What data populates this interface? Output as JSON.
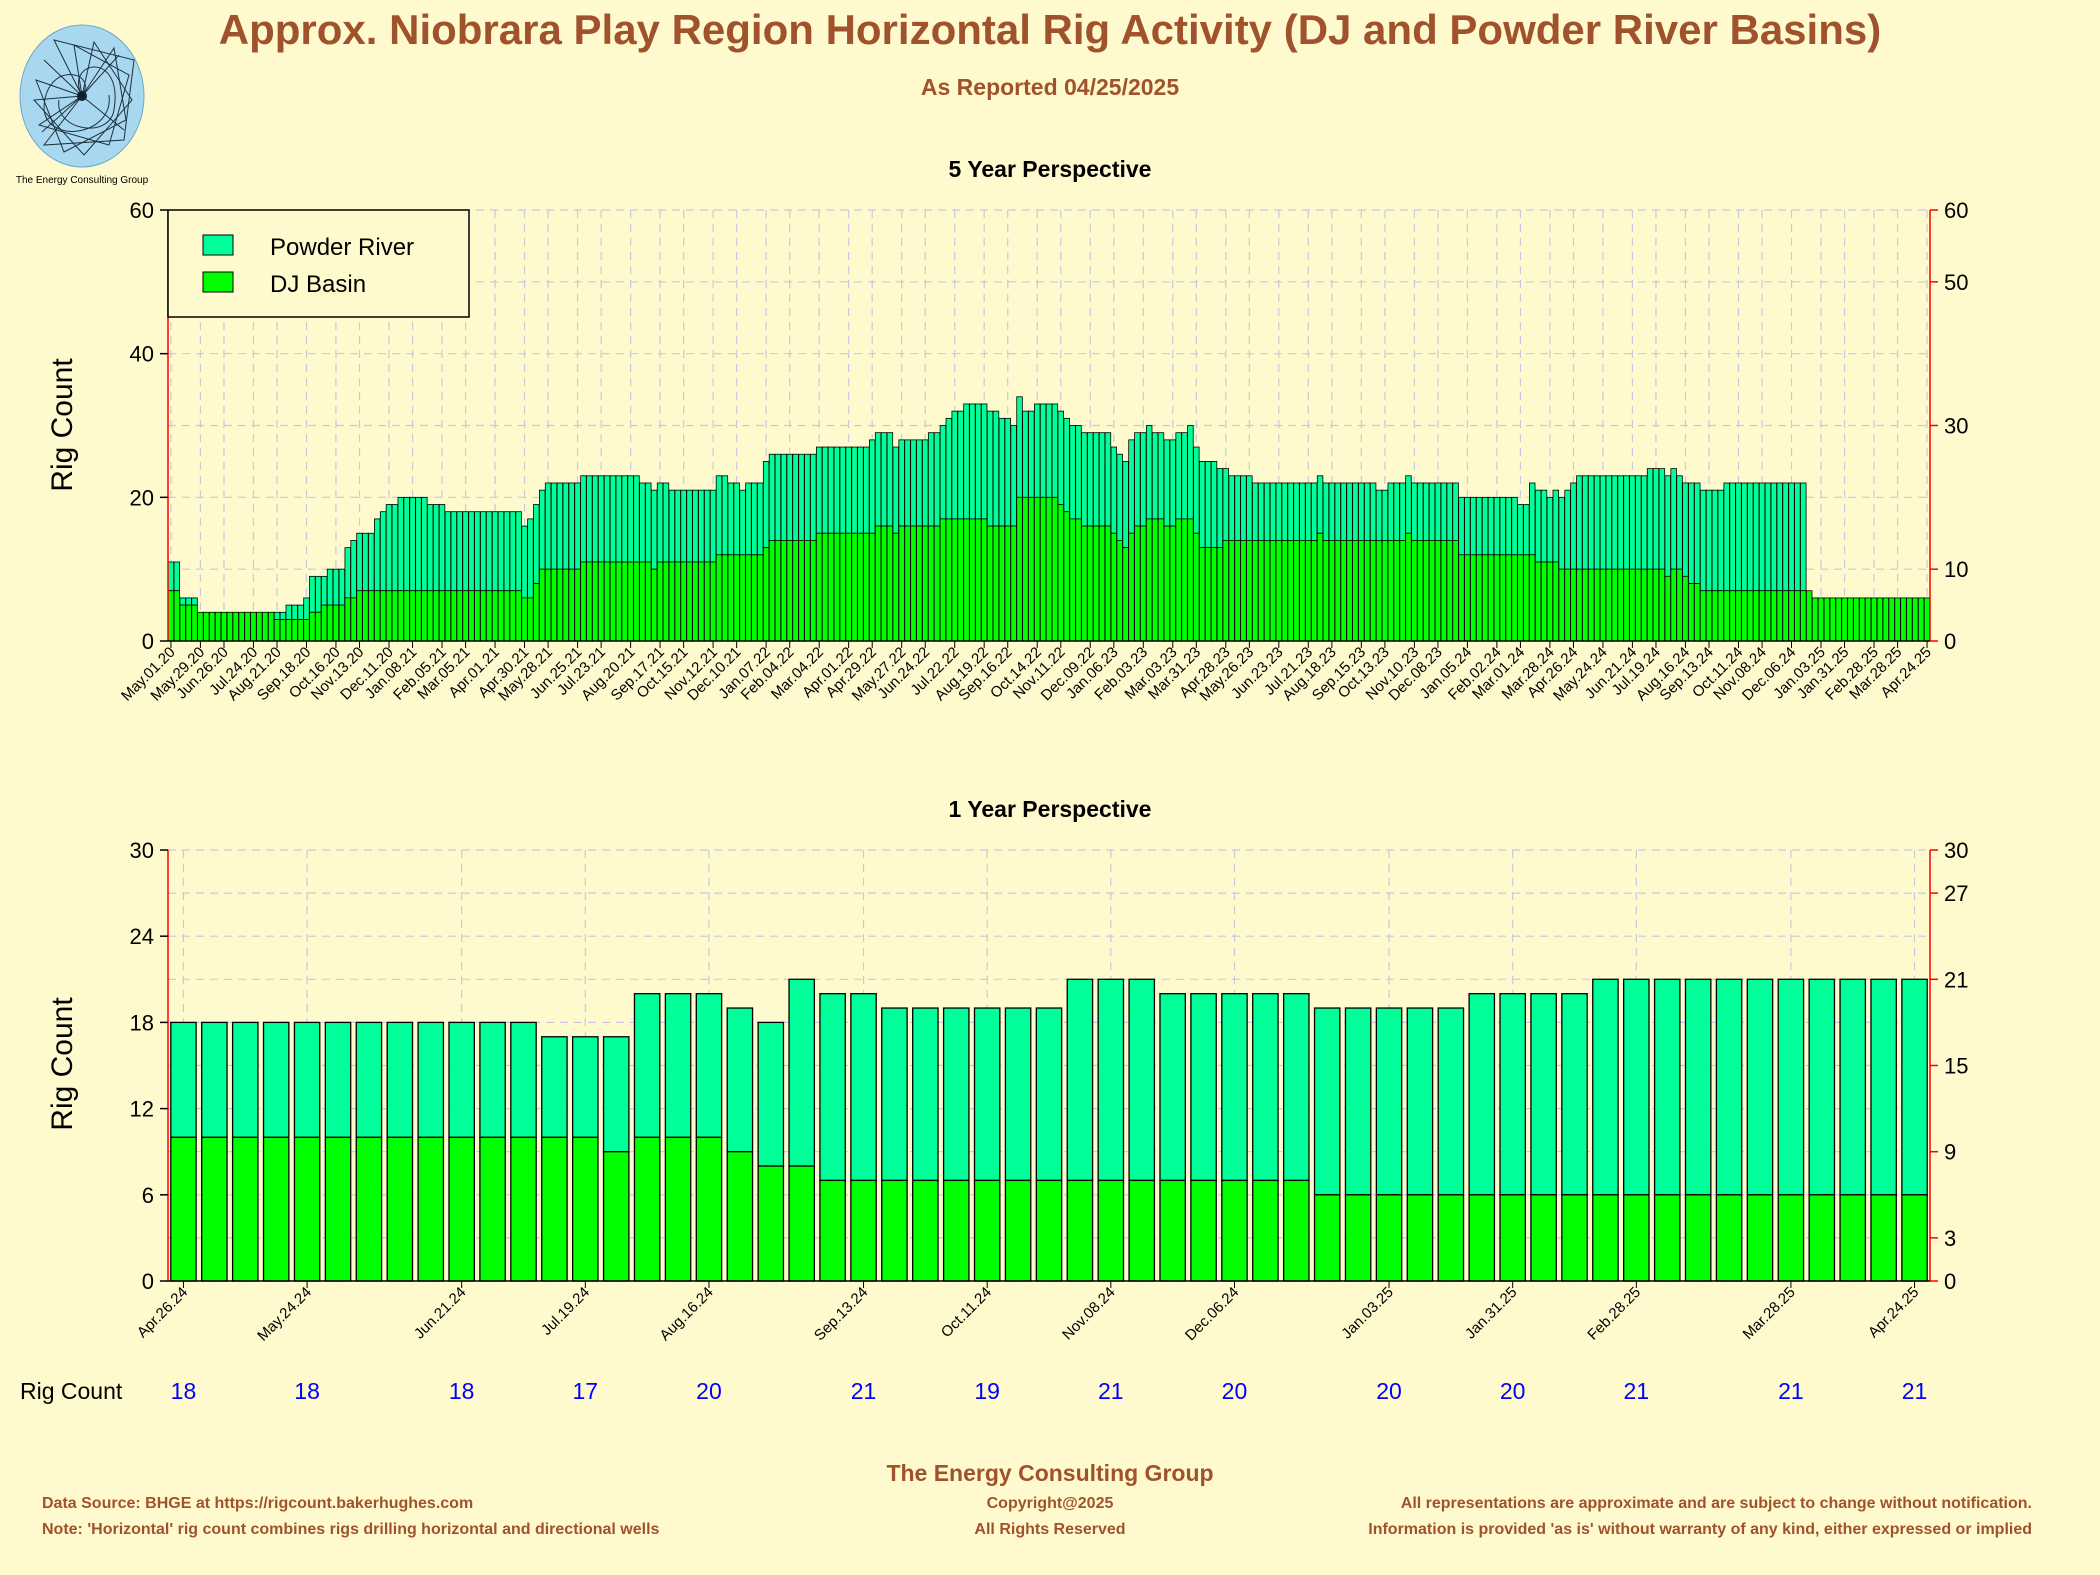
{
  "title": "Approx. Niobrara Play Region Horizontal Rig Activity (DJ and Powder River Basins)",
  "subtitle": "As Reported 04/25/2025",
  "logo": {
    "text": "The Energy Consulting Group",
    "icon": "spiral-logo-icon"
  },
  "colors": {
    "powder_river": "#00ff99",
    "dj_basin": "#00ff00",
    "title": "#a0522d",
    "right_axis": "#ff0000",
    "rig_count_values": "#0000ff",
    "background": "#fffacd"
  },
  "chart_data": [
    {
      "type": "bar",
      "stacked": true,
      "title": "5 Year Perspective",
      "ylabel": "Rig Count",
      "ylim": [
        0,
        60
      ],
      "yticks_left": [
        0,
        20,
        40,
        60
      ],
      "yticks_right": [
        0,
        10,
        30,
        50,
        60
      ],
      "grid": true,
      "legend_position": "top-left",
      "x_tick_labels": [
        "May.01.20",
        "May.29.20",
        "Jun.26.20",
        "Jul.24.20",
        "Aug.21.20",
        "Sep.18.20",
        "Oct.16.20",
        "Nov.13.20",
        "Dec.11.20",
        "Jan.08.21",
        "Feb.05.21",
        "Mar.05.21",
        "Apr.01.21",
        "Apr.30.21",
        "May.28.21",
        "Jun.25.21",
        "Jul.23.21",
        "Aug.20.21",
        "Sep.17.21",
        "Oct.15.21",
        "Nov.12.21",
        "Dec.10.21",
        "Jan.07.22",
        "Feb.04.22",
        "Mar.04.22",
        "Apr.01.22",
        "Apr.29.22",
        "May.27.22",
        "Jun.24.22",
        "Jul.22.22",
        "Aug.19.22",
        "Sep.16.22",
        "Oct.14.22",
        "Nov.11.22",
        "Dec.09.22",
        "Jan.06.23",
        "Feb.03.23",
        "Mar.03.23",
        "Mar.31.23",
        "Apr.28.23",
        "May.26.23",
        "Jun.23.23",
        "Jul.21.23",
        "Aug.18.23",
        "Sep.15.23",
        "Oct.13.23",
        "Nov.10.23",
        "Dec.08.23",
        "Jan.05.24",
        "Feb.02.24",
        "Mar.01.24",
        "Mar.28.24",
        "Apr.26.24",
        "May.24.24",
        "Jun.21.24",
        "Jul.19.24",
        "Aug.16.24",
        "Sep.13.24",
        "Oct.11.24",
        "Nov.08.24",
        "Dec.06.24",
        "Jan.03.25",
        "Jan.31.25",
        "Feb.28.25",
        "Mar.28.25",
        "Apr.24.25"
      ],
      "series": [
        {
          "name": "Powder River",
          "values": [
            4,
            4,
            1,
            1,
            1,
            0,
            0,
            0,
            0,
            0,
            0,
            0,
            0,
            0,
            0,
            0,
            0,
            0,
            1,
            1,
            2,
            2,
            2,
            3,
            5,
            5,
            4,
            5,
            5,
            5,
            7,
            8,
            8,
            8,
            8,
            10,
            11,
            12,
            12,
            13,
            13,
            13,
            13,
            13,
            12,
            12,
            12,
            11,
            11,
            11,
            11,
            11,
            11,
            11,
            11,
            11,
            11,
            11,
            11,
            11,
            10,
            11,
            11,
            11,
            12,
            12,
            12,
            12,
            12,
            12,
            12,
            12,
            12,
            12,
            12,
            12,
            12,
            12,
            12,
            12,
            11,
            11,
            11,
            11,
            11,
            10,
            10,
            10,
            10,
            10,
            10,
            10,
            10,
            11,
            11,
            10,
            10,
            9,
            10,
            10,
            10,
            12,
            12,
            12,
            12,
            12,
            12,
            12,
            12,
            12,
            12,
            12,
            12,
            12,
            12,
            12,
            12,
            12,
            12,
            13,
            13,
            13,
            13,
            12,
            12,
            12,
            12,
            12,
            12,
            13,
            13,
            13,
            14,
            15,
            15,
            16,
            16,
            16,
            16,
            16,
            16,
            15,
            15,
            14,
            14,
            12,
            12,
            13,
            13,
            13,
            13,
            13,
            13,
            13,
            13,
            13,
            13,
            13,
            13,
            13,
            12,
            12,
            12,
            13,
            13,
            13,
            13,
            12,
            12,
            12,
            12,
            12,
            12,
            13,
            12,
            12,
            12,
            12,
            11,
            10,
            9,
            9,
            9,
            9,
            8,
            8,
            8,
            8,
            8,
            8,
            8,
            8,
            8,
            8,
            8,
            8,
            8,
            8,
            8,
            8,
            8,
            8,
            8,
            8,
            8,
            7,
            7,
            8,
            8,
            8,
            8,
            8,
            8,
            8,
            8,
            8,
            8,
            8,
            8,
            8,
            8,
            8,
            8,
            8,
            8,
            8,
            8,
            8,
            8,
            7,
            7,
            10,
            10,
            10,
            9,
            10,
            10,
            11,
            12,
            13,
            13,
            13,
            13,
            13,
            13,
            13,
            13,
            13,
            13,
            13,
            13,
            14,
            14,
            14,
            14,
            14,
            13,
            13,
            14,
            14,
            14,
            14,
            14,
            14,
            15,
            15,
            15,
            15,
            15,
            15,
            15,
            15,
            15,
            15,
            15,
            15,
            15,
            15
          ]
        },
        {
          "name": "DJ Basin",
          "values": [
            7,
            7,
            5,
            5,
            5,
            4,
            4,
            4,
            4,
            4,
            4,
            4,
            4,
            4,
            4,
            4,
            4,
            4,
            3,
            3,
            3,
            3,
            3,
            3,
            4,
            4,
            5,
            5,
            5,
            5,
            6,
            6,
            7,
            7,
            7,
            7,
            7,
            7,
            7,
            7,
            7,
            7,
            7,
            7,
            7,
            7,
            7,
            7,
            7,
            7,
            7,
            7,
            7,
            7,
            7,
            7,
            7,
            7,
            7,
            7,
            6,
            6,
            8,
            10,
            10,
            10,
            10,
            10,
            10,
            10,
            11,
            11,
            11,
            11,
            11,
            11,
            11,
            11,
            11,
            11,
            11,
            11,
            10,
            11,
            11,
            11,
            11,
            11,
            11,
            11,
            11,
            11,
            11,
            12,
            12,
            12,
            12,
            12,
            12,
            12,
            12,
            13,
            14,
            14,
            14,
            14,
            14,
            14,
            14,
            14,
            15,
            15,
            15,
            15,
            15,
            15,
            15,
            15,
            15,
            15,
            16,
            16,
            16,
            15,
            16,
            16,
            16,
            16,
            16,
            16,
            16,
            17,
            17,
            17,
            17,
            17,
            17,
            17,
            17,
            16,
            16,
            16,
            16,
            16,
            20,
            20,
            20,
            20,
            20,
            20,
            20,
            19,
            18,
            17,
            17,
            16,
            16,
            16,
            16,
            16,
            15,
            14,
            13,
            15,
            16,
            16,
            17,
            17,
            17,
            16,
            16,
            17,
            17,
            17,
            15,
            13,
            13,
            13,
            13,
            14,
            14,
            14,
            14,
            14,
            14,
            14,
            14,
            14,
            14,
            14,
            14,
            14,
            14,
            14,
            14,
            15,
            14,
            14,
            14,
            14,
            14,
            14,
            14,
            14,
            14,
            14,
            14,
            14,
            14,
            14,
            15,
            14,
            14,
            14,
            14,
            14,
            14,
            14,
            14,
            12,
            12,
            12,
            12,
            12,
            12,
            12,
            12,
            12,
            12,
            12,
            12,
            12,
            11,
            11,
            11,
            11,
            10,
            10,
            10,
            10,
            10,
            10,
            10,
            10,
            10,
            10,
            10,
            10,
            10,
            10,
            10,
            10,
            10,
            10,
            9,
            10,
            10,
            9,
            8,
            8,
            7,
            7,
            7,
            7,
            7,
            7,
            7,
            7,
            7,
            7,
            7,
            7,
            7,
            7,
            7,
            7,
            7,
            7,
            7,
            6,
            6,
            6,
            6,
            6,
            6,
            6,
            6,
            6,
            6,
            6,
            6,
            6,
            6,
            6,
            6,
            6,
            6,
            6,
            6
          ]
        }
      ]
    },
    {
      "type": "bar",
      "stacked": true,
      "title": "1 Year Perspective",
      "ylabel": "Rig Count",
      "ylim": [
        0,
        30
      ],
      "yticks_left": [
        0,
        6,
        12,
        18,
        24,
        30
      ],
      "yticks_right": [
        0,
        3,
        9,
        15,
        21,
        27,
        30
      ],
      "grid": true,
      "x_tick_labels": [
        "Apr.26.24",
        "May.24.24",
        "Jun.21.24",
        "Jul.19.24",
        "Aug.16.24",
        "Sep.13.24",
        "Oct.11.24",
        "Nov.08.24",
        "Dec.06.24",
        "Jan.03.25",
        "Jan.31.25",
        "Feb.28.25",
        "Mar.28.25",
        "Apr.24.25"
      ],
      "series": [
        {
          "name": "Powder River",
          "values": [
            8,
            8,
            8,
            8,
            8,
            8,
            8,
            8,
            8,
            8,
            8,
            8,
            7,
            7,
            8,
            10,
            10,
            10,
            10,
            10,
            13,
            13,
            13,
            12,
            12,
            12,
            12,
            12,
            12,
            14,
            14,
            14,
            13,
            13,
            13,
            13,
            13,
            13,
            13,
            13,
            13,
            13,
            14,
            14,
            14,
            14,
            15,
            15,
            15,
            15,
            15,
            15,
            15,
            15,
            15,
            15,
            15
          ]
        },
        {
          "name": "DJ Basin",
          "values": [
            10,
            10,
            10,
            10,
            10,
            10,
            10,
            10,
            10,
            10,
            10,
            10,
            10,
            10,
            9,
            10,
            10,
            10,
            9,
            8,
            8,
            7,
            7,
            7,
            7,
            7,
            7,
            7,
            7,
            7,
            7,
            7,
            7,
            7,
            7,
            7,
            7,
            6,
            6,
            6,
            6,
            6,
            6,
            6,
            6,
            6,
            6,
            6,
            6,
            6,
            6,
            6,
            6,
            6,
            6,
            6,
            6
          ]
        }
      ],
      "rig_count_row": {
        "label": "Rig Count",
        "values": [
          "18",
          "18",
          "18",
          "17",
          "20",
          "21",
          "19",
          "21",
          "20",
          "20",
          "20",
          "21",
          "21",
          "21"
        ]
      }
    }
  ],
  "footer": {
    "center_title": "The Energy Consulting Group",
    "left_line1": "Data Source: BHGE at https://rigcount.bakerhughes.com",
    "left_line2": "Note: 'Horizontal' rig count combines rigs drilling horizontal and directional wells",
    "center_line1": "Copyright@2025",
    "center_line2": "All Rights Reserved",
    "right_line1": "All representations are approximate and are subject to change without notification.",
    "right_line2": "Information is provided 'as is' without warranty of any kind, either expressed or implied"
  }
}
